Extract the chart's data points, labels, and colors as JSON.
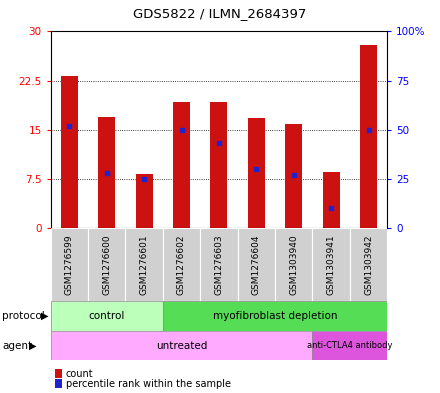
{
  "title": "GDS5822 / ILMN_2684397",
  "samples": [
    "GSM1276599",
    "GSM1276600",
    "GSM1276601",
    "GSM1276602",
    "GSM1276603",
    "GSM1276604",
    "GSM1303940",
    "GSM1303941",
    "GSM1303942"
  ],
  "counts": [
    23.2,
    17.0,
    8.3,
    19.2,
    19.2,
    16.8,
    15.8,
    8.5,
    28.0
  ],
  "percentile_ranks": [
    52,
    28,
    25,
    50,
    43,
    30,
    27,
    10,
    50
  ],
  "left_ylim": [
    0,
    30
  ],
  "right_ylim": [
    0,
    100
  ],
  "left_yticks": [
    0,
    7.5,
    15,
    22.5,
    30
  ],
  "left_yticklabels": [
    "0",
    "7.5",
    "15",
    "22.5",
    "30"
  ],
  "right_yticks": [
    0,
    25,
    50,
    75,
    100
  ],
  "right_yticklabels": [
    "0",
    "25",
    "50",
    "75",
    "100%"
  ],
  "bar_color": "#cc1111",
  "dot_color": "#2222cc",
  "protocol_control_color": "#bbffbb",
  "protocol_myo_color": "#55dd55",
  "agent_untreated_color": "#ffaaff",
  "agent_anti_color": "#dd55dd",
  "protocol_label": "protocol",
  "agent_label": "agent",
  "control_label": "control",
  "myo_label": "myofibroblast depletion",
  "untreated_label": "untreated",
  "anti_label": "anti-CTLA4 antibody",
  "legend_count": "count",
  "legend_pct": "percentile rank within the sample"
}
